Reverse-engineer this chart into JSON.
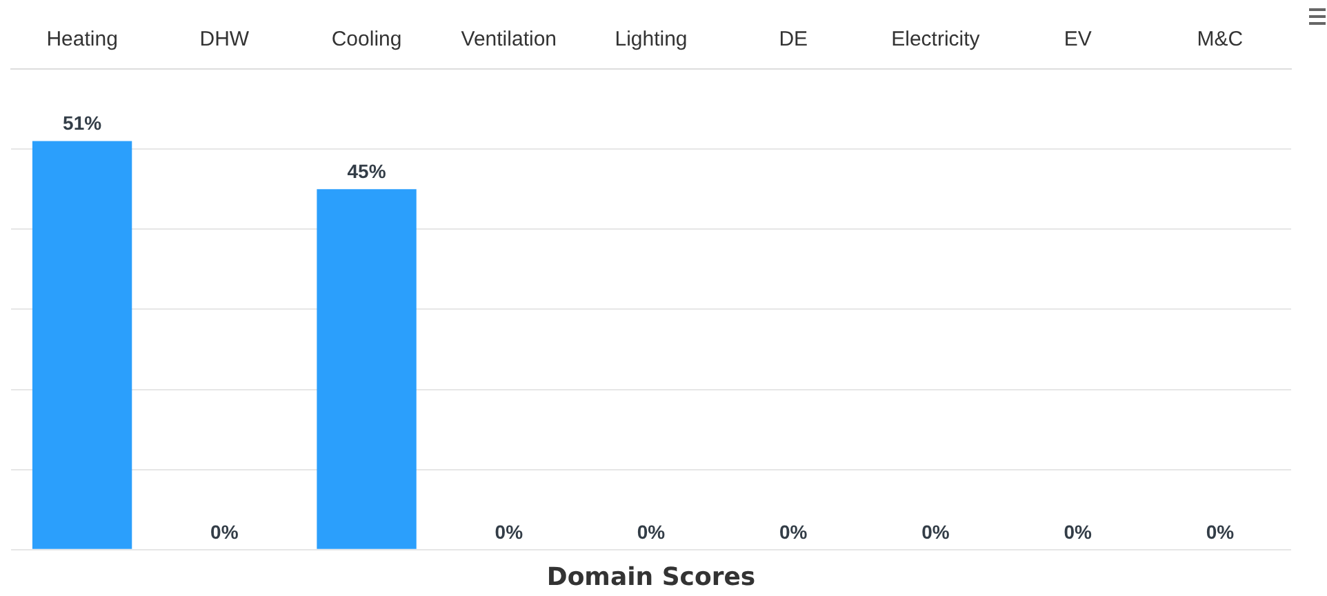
{
  "chart_data": {
    "type": "bar",
    "title": "Domain Scores",
    "categories": [
      "Heating",
      "DHW",
      "Cooling",
      "Ventilation",
      "Lighting",
      "DE",
      "Electricity",
      "EV",
      "M&C"
    ],
    "values": [
      51,
      0,
      45,
      0,
      0,
      0,
      0,
      0,
      0
    ],
    "value_labels": [
      "51%",
      "0%",
      "45%",
      "0%",
      "0%",
      "0%",
      "0%",
      "0%",
      "0%"
    ],
    "color": "#2b9ffc",
    "ylim": [
      0,
      60
    ],
    "yticks": [
      {
        "value": 0,
        "label": null
      },
      {
        "value": 10,
        "label": null
      },
      {
        "value": 20,
        "label": null
      },
      {
        "value": 30,
        "label": null
      },
      {
        "value": 40,
        "label": null
      },
      {
        "value": 50,
        "label": null
      },
      {
        "value": 60,
        "label": null
      }
    ],
    "grid": "y",
    "tick_labels": "x"
  }
}
